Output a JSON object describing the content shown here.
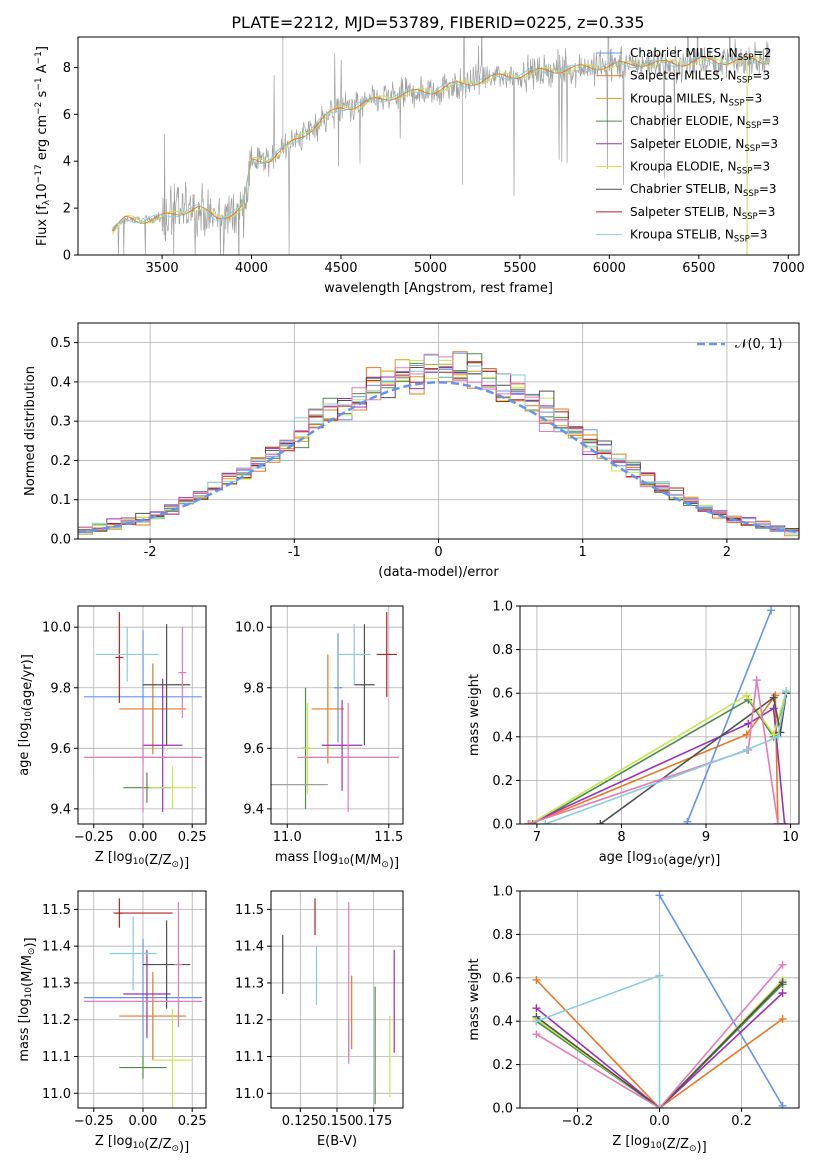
{
  "title": "PLATE=2212, MJD=53789, FIBERID=0225, z=0.335",
  "colors": [
    "#6495ED",
    "#E87722",
    "#D4A017",
    "#4C8C4A",
    "#9B30B8",
    "#C8E650",
    "#505050",
    "#B22222",
    "#87CEDB",
    "#E57BB6",
    "#A0A0A0"
  ],
  "chart_data": [
    {
      "id": "spectrum",
      "type": "line",
      "xlabel": "wavelength [Angstrom, rest frame]",
      "ylabel_parts": [
        "Flux [f",
        "λ",
        "10",
        "−17",
        " erg cm",
        "−2",
        " s",
        "−1",
        " A",
        "−1",
        "]"
      ],
      "xlim": [
        3030,
        7060
      ],
      "ylim": [
        0,
        9.3
      ],
      "xticks": [
        3500,
        4000,
        4500,
        5000,
        5500,
        6000,
        6500,
        7000
      ],
      "yticks": [
        0,
        2,
        4,
        6,
        8
      ],
      "continuum": {
        "x": [
          3220,
          3300,
          3400,
          3500,
          3550,
          3650,
          3700,
          3750,
          3800,
          3850,
          3900,
          3950,
          4000,
          4100,
          4200,
          4300,
          4400,
          4500,
          4600,
          4700,
          4800,
          4900,
          5000,
          5100,
          5200,
          5300,
          5400,
          5500,
          5600,
          5700,
          5800,
          5900,
          6000,
          6100,
          6200,
          6300,
          6400,
          6500,
          6600,
          6700,
          6800,
          6900
        ],
        "y": [
          1.0,
          1.55,
          1.5,
          1.6,
          1.7,
          1.95,
          2.0,
          1.8,
          1.6,
          1.7,
          1.8,
          2.0,
          4.0,
          4.1,
          4.6,
          5.2,
          5.8,
          6.3,
          6.4,
          6.6,
          6.8,
          6.9,
          7.0,
          7.2,
          7.3,
          7.5,
          7.6,
          7.7,
          7.8,
          7.9,
          7.95,
          8.0,
          8.1,
          8.1,
          8.2,
          8.15,
          8.2,
          8.3,
          8.25,
          8.3,
          8.3,
          8.3
        ]
      },
      "legend": [
        {
          "name": "Chabrier MILES, N",
          "sub": "SSP",
          "suffix": "=2"
        },
        {
          "name": "Salpeter MILES, N",
          "sub": "SSP",
          "suffix": "=3"
        },
        {
          "name": "Kroupa MILES, N",
          "sub": "SSP",
          "suffix": "=3"
        },
        {
          "name": "Chabrier ELODIE, N",
          "sub": "SSP",
          "suffix": "=3"
        },
        {
          "name": "Salpeter ELODIE, N",
          "sub": "SSP",
          "suffix": "=3"
        },
        {
          "name": "Kroupa ELODIE, N",
          "sub": "SSP",
          "suffix": "=3"
        },
        {
          "name": "Chabrier STELIB, N",
          "sub": "SSP",
          "suffix": "=3"
        },
        {
          "name": "Salpeter STELIB, N",
          "sub": "SSP",
          "suffix": "=3"
        },
        {
          "name": "Kroupa STELIB, N",
          "sub": "SSP",
          "suffix": "=3"
        }
      ]
    },
    {
      "id": "residuals",
      "type": "step",
      "xlabel": "(data-model)/error",
      "ylabel": "Normed distribution",
      "xlim": [
        -2.5,
        2.5
      ],
      "ylim": [
        0,
        0.55
      ],
      "xticks": [
        -2,
        -1,
        0,
        1,
        2
      ],
      "yticks": [
        0.0,
        0.1,
        0.2,
        0.3,
        0.4,
        0.5
      ],
      "gaussian_label": "𝒩(0, 1)",
      "bin_width": 0.1
    },
    {
      "id": "age-vs-Z",
      "type": "errorbar",
      "xlabel": "Z [log10(Z/Z⊙)]",
      "ylabel": "age  [log10(age/yr)]",
      "xlim": [
        -0.33,
        0.32
      ],
      "ylim": [
        9.35,
        10.07
      ],
      "xticks": [
        -0.25,
        0.0,
        0.25
      ],
      "yticks": [
        9.4,
        9.6,
        9.8,
        10.0
      ],
      "points": [
        {
          "c": 0,
          "x": 0.0,
          "xe": 0.3,
          "y": 9.77,
          "ye": 0.22
        },
        {
          "c": 1,
          "x": 0.05,
          "xe": 0.17,
          "y": 9.73,
          "ye": 0.15
        },
        {
          "c": 3,
          "x": 0.02,
          "xe": 0.12,
          "y": 9.47,
          "ye": 0.05
        },
        {
          "c": 4,
          "x": 0.1,
          "xe": 0.1,
          "y": 9.61,
          "ye": 0.22
        },
        {
          "c": 5,
          "x": 0.15,
          "xe": 0.12,
          "y": 9.47,
          "ye": 0.07
        },
        {
          "c": 6,
          "x": 0.12,
          "xe": 0.12,
          "y": 9.81,
          "ye": 0.2
        },
        {
          "c": 7,
          "x": -0.12,
          "xe": 0.02,
          "y": 9.9,
          "ye": 0.15
        },
        {
          "c": 8,
          "x": -0.08,
          "xe": 0.16,
          "y": 9.91,
          "ye": 0.09
        },
        {
          "c": 9,
          "x": 0.0,
          "xe": 0.3,
          "y": 9.57,
          "ye": 0.18
        },
        {
          "c": 9,
          "x": 0.2,
          "xe": 0.02,
          "y": 9.85,
          "ye": 0.15
        }
      ]
    },
    {
      "id": "age-vs-mass",
      "type": "errorbar",
      "xlabel": "mass [log10(M/M⊙)]",
      "ylabel": "",
      "xlim": [
        10.92,
        11.57
      ],
      "ylim": [
        9.35,
        10.07
      ],
      "xticks": [
        11.0,
        11.5
      ],
      "yticks": [
        9.4,
        9.6,
        9.8,
        10.0
      ],
      "points": [
        {
          "c": 0,
          "x": 11.25,
          "xe": 0.02,
          "y": 9.8,
          "ye": 0.18
        },
        {
          "c": 1,
          "x": 11.2,
          "xe": 0.08,
          "y": 9.73,
          "ye": 0.18
        },
        {
          "c": 3,
          "x": 11.09,
          "xe": 0.02,
          "y": 9.6,
          "ye": 0.2
        },
        {
          "c": 4,
          "x": 11.27,
          "xe": 0.1,
          "y": 9.61,
          "ye": 0.15
        },
        {
          "c": 5,
          "x": 11.1,
          "xe": 0.03,
          "y": 9.6,
          "ye": 0.15
        },
        {
          "c": 6,
          "x": 11.38,
          "xe": 0.05,
          "y": 9.81,
          "ye": 0.2
        },
        {
          "c": 7,
          "x": 11.49,
          "xe": 0.05,
          "y": 9.91,
          "ye": 0.14
        },
        {
          "c": 8,
          "x": 11.33,
          "xe": 0.08,
          "y": 9.91,
          "ye": 0.1
        },
        {
          "c": 9,
          "x": 11.3,
          "xe": 0.25,
          "y": 9.57,
          "ye": 0.18
        },
        {
          "c": 10,
          "x": 11.05,
          "xe": 0.15,
          "y": 9.48,
          "ye": 0.0
        }
      ]
    },
    {
      "id": "weight-vs-age",
      "type": "line",
      "xlabel": "age  [log10(age/yr)]",
      "ylabel": "mass weight",
      "xlim": [
        6.8,
        10.1
      ],
      "ylim": [
        0,
        1.0
      ],
      "xticks": [
        7,
        8,
        9,
        10
      ],
      "yticks": [
        0.0,
        0.2,
        0.4,
        0.6,
        0.8,
        1.0
      ],
      "series": [
        {
          "c": 0,
          "x": [
            8.78,
            9.77
          ],
          "y": [
            0.01,
            0.98
          ]
        },
        {
          "c": 1,
          "x": [
            6.92,
            9.48,
            9.82,
            9.85
          ],
          "y": [
            0.0,
            0.41,
            0.59,
            0.0
          ]
        },
        {
          "c": 3,
          "x": [
            6.95,
            9.5,
            9.8,
            9.95
          ],
          "y": [
            0.0,
            0.57,
            0.4,
            0.6
          ]
        },
        {
          "c": 4,
          "x": [
            6.9,
            9.5,
            9.8,
            9.93
          ],
          "y": [
            0.0,
            0.46,
            0.53,
            0.0
          ]
        },
        {
          "c": 5,
          "x": [
            6.92,
            9.48,
            9.8,
            9.95
          ],
          "y": [
            0.0,
            0.59,
            0.41,
            0.61
          ]
        },
        {
          "c": 6,
          "x": [
            7.75,
            9.8,
            9.88,
            9.95
          ],
          "y": [
            0.0,
            0.58,
            0.42,
            0.6
          ]
        },
        {
          "c": 9,
          "x": [
            6.9,
            9.5,
            9.6,
            9.85
          ],
          "y": [
            0.0,
            0.34,
            0.66,
            0.0
          ]
        },
        {
          "c": 8,
          "x": [
            7.1,
            9.48,
            9.85,
            9.95
          ],
          "y": [
            0.0,
            0.34,
            0.4,
            0.61
          ]
        }
      ]
    },
    {
      "id": "mass-vs-Z",
      "type": "errorbar",
      "xlabel": "Z [log10(Z/Z⊙)]",
      "ylabel": "mass [log10(M/M⊙)]",
      "xlim": [
        -0.33,
        0.32
      ],
      "ylim": [
        10.96,
        11.55
      ],
      "xticks": [
        -0.25,
        0.0,
        0.25
      ],
      "yticks": [
        11.0,
        11.1,
        11.2,
        11.3,
        11.4,
        11.5
      ],
      "points": [
        {
          "c": 0,
          "x": 0.0,
          "xe": 0.3,
          "y": 11.26,
          "ye": 0.16
        },
        {
          "c": 1,
          "x": 0.05,
          "xe": 0.17,
          "y": 11.21,
          "ye": 0.12
        },
        {
          "c": 3,
          "x": 0.0,
          "xe": 0.12,
          "y": 11.07,
          "ye": 0.03
        },
        {
          "c": 4,
          "x": 0.02,
          "xe": 0.12,
          "y": 11.27,
          "ye": 0.12
        },
        {
          "c": 5,
          "x": 0.15,
          "xe": 0.1,
          "y": 11.09,
          "ye": 0.14
        },
        {
          "c": 6,
          "x": 0.12,
          "xe": 0.12,
          "y": 11.35,
          "ye": 0.12
        },
        {
          "c": 7,
          "x": -0.12,
          "xe": 0.02,
          "y": 11.49,
          "ye": 0.04
        },
        {
          "c": 7,
          "x": 0.0,
          "xe": 0.15,
          "y": 11.49,
          "ye": 0.0
        },
        {
          "c": 8,
          "x": -0.05,
          "xe": 0.12,
          "y": 11.38,
          "ye": 0.1
        },
        {
          "c": 9,
          "x": 0.0,
          "xe": 0.3,
          "y": 11.25,
          "ye": 0.0
        },
        {
          "c": 9,
          "x": 0.18,
          "xe": 0.02,
          "y": 11.35,
          "ye": 0.17
        }
      ]
    },
    {
      "id": "mass-vs-EBV",
      "type": "errorbar",
      "xlabel": "E(B-V)",
      "ylabel": "",
      "xlim": [
        0.105,
        0.195
      ],
      "ylim": [
        10.96,
        11.55
      ],
      "xticks": [
        0.125,
        0.15,
        0.175
      ],
      "xticklabels": [
        "0.125",
        "0.150",
        "0.175"
      ],
      "yticks": [
        11.0,
        11.1,
        11.2,
        11.3,
        11.4,
        11.5
      ],
      "points": [
        {
          "c": 0,
          "x": 0.158,
          "xe": 0,
          "y": 11.15,
          "ye": 0.05
        },
        {
          "c": 1,
          "x": 0.16,
          "xe": 0,
          "y": 11.22,
          "ye": 0.1
        },
        {
          "c": 3,
          "x": 0.176,
          "xe": 0,
          "y": 11.13,
          "ye": 0.16
        },
        {
          "c": 4,
          "x": 0.189,
          "xe": 0,
          "y": 11.25,
          "ye": 0.14
        },
        {
          "c": 5,
          "x": 0.186,
          "xe": 0,
          "y": 11.1,
          "ye": 0.11
        },
        {
          "c": 6,
          "x": 0.113,
          "xe": 0,
          "y": 11.35,
          "ye": 0.08
        },
        {
          "c": 7,
          "x": 0.135,
          "xe": 0,
          "y": 11.48,
          "ye": 0.05
        },
        {
          "c": 8,
          "x": 0.136,
          "xe": 0,
          "y": 11.32,
          "ye": 0.08
        },
        {
          "c": 9,
          "x": 0.158,
          "xe": 0,
          "y": 11.3,
          "ye": 0.22
        }
      ]
    },
    {
      "id": "weight-vs-Z",
      "type": "line",
      "xlabel": "Z [log10(Z/Z⊙)]",
      "ylabel": "mass weight",
      "xlim": [
        -0.34,
        0.34
      ],
      "ylim": [
        0,
        1.0
      ],
      "xticks": [
        -0.2,
        0.0,
        0.2
      ],
      "yticks": [
        0.0,
        0.2,
        0.4,
        0.6,
        0.8,
        1.0
      ],
      "series": [
        {
          "c": 0,
          "x": [
            0.0,
            0.3
          ],
          "y": [
            0.98,
            0.01
          ]
        },
        {
          "c": 1,
          "x": [
            -0.3,
            0.0,
            0.3
          ],
          "y": [
            0.59,
            0.0,
            0.41
          ]
        },
        {
          "c": 3,
          "x": [
            -0.3,
            0.0,
            0.3
          ],
          "y": [
            0.4,
            0.0,
            0.57
          ]
        },
        {
          "c": 4,
          "x": [
            -0.3,
            0.0,
            0.3
          ],
          "y": [
            0.46,
            0.0,
            0.53
          ]
        },
        {
          "c": 5,
          "x": [
            -0.3,
            0.0,
            0.3
          ],
          "y": [
            0.41,
            0.0,
            0.59
          ]
        },
        {
          "c": 6,
          "x": [
            -0.3,
            0.0,
            0.3
          ],
          "y": [
            0.42,
            0.0,
            0.58
          ]
        },
        {
          "c": 9,
          "x": [
            -0.3,
            0.0,
            0.3
          ],
          "y": [
            0.34,
            0.0,
            0.66
          ]
        },
        {
          "c": 8,
          "x": [
            -0.3,
            0.0,
            0.0
          ],
          "y": [
            0.4,
            0.61,
            0.0
          ]
        }
      ]
    }
  ]
}
